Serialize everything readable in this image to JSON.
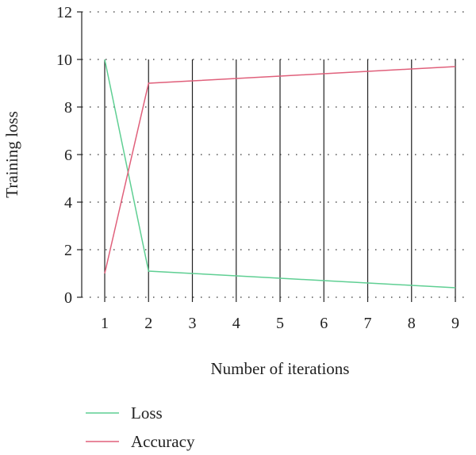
{
  "chart_data": {
    "type": "line",
    "title": "",
    "xlabel": "Number of iterations",
    "ylabel": "Training loss",
    "x": [
      1,
      2,
      3,
      4,
      5,
      6,
      7,
      8,
      9
    ],
    "xlim": [
      1,
      9
    ],
    "ylim": [
      0,
      12
    ],
    "yticks": [
      0,
      2,
      4,
      6,
      8,
      10,
      12
    ],
    "xticks": [
      1,
      2,
      3,
      4,
      5,
      6,
      7,
      8,
      9
    ],
    "grid": "horizontal dotted",
    "vertical_lines_at_ticks": true,
    "legend_position": "bottom-left",
    "series": [
      {
        "name": "Loss",
        "color": "#5fcf93",
        "values": [
          10,
          1.1,
          1.0,
          0.9,
          0.8,
          0.7,
          0.6,
          0.5,
          0.4
        ]
      },
      {
        "name": "Accuracy",
        "color": "#e0607b",
        "values": [
          1.0,
          9.0,
          9.1,
          9.2,
          9.3,
          9.4,
          9.5,
          9.6,
          9.7
        ]
      }
    ]
  }
}
